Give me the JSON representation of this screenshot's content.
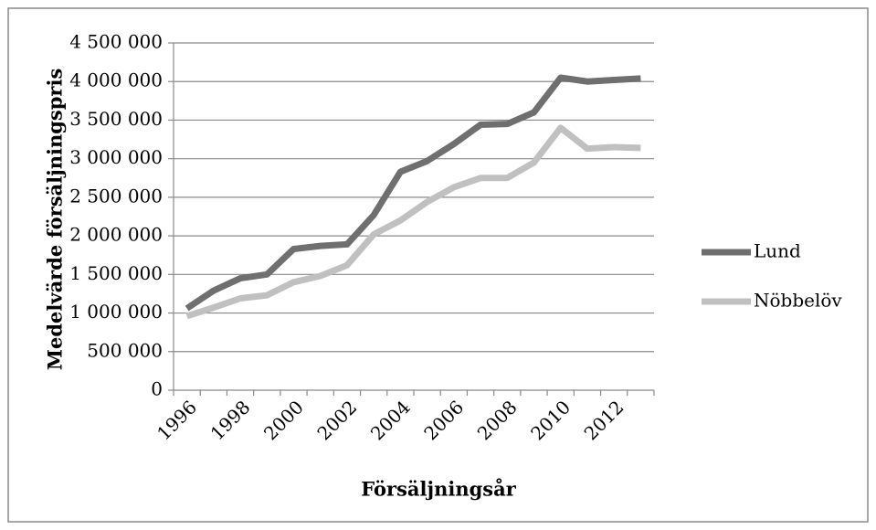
{
  "chart_data": {
    "type": "line",
    "x_label": "Försäljningsår",
    "y_label": "Medelvärde försäljningspris",
    "categories": [
      "1996",
      null,
      "1998",
      null,
      "2000",
      null,
      "2002",
      null,
      "2004",
      null,
      "2006",
      null,
      "2008",
      null,
      "2010",
      null,
      "2012",
      null
    ],
    "series": [
      {
        "name": "Lund",
        "color": "#6f6f6f",
        "values": [
          1060000,
          1290000,
          1450000,
          1500000,
          1830000,
          1870000,
          1890000,
          2270000,
          2830000,
          2970000,
          3190000,
          3440000,
          3450000,
          3600000,
          4050000,
          4000000,
          4020000,
          4040000
        ]
      },
      {
        "name": "Nöbbelöv",
        "color": "#c0c0c0",
        "values": [
          960000,
          1070000,
          1190000,
          1230000,
          1400000,
          1480000,
          1620000,
          2020000,
          2200000,
          2440000,
          2630000,
          2750000,
          2750000,
          2950000,
          3400000,
          3130000,
          3150000,
          3140000
        ]
      }
    ],
    "ylim": [
      0,
      4500000
    ],
    "yticks": [
      0,
      {
        "value": 500000,
        "label": "500 000"
      },
      {
        "value": 1000000,
        "label": "1 000 000"
      },
      {
        "value": 1500000,
        "label": "1 500 000"
      },
      {
        "value": 2000000,
        "label": "2 000 000"
      },
      {
        "value": 2500000,
        "label": "2 500 000"
      },
      {
        "value": 3000000,
        "label": "3 000 000"
      },
      {
        "value": 3500000,
        "label": "3 500 000"
      },
      {
        "value": 4000000,
        "label": "4 000 000"
      },
      {
        "value": 4500000,
        "label": "4 500 000"
      }
    ],
    "grid": true,
    "legend": "right"
  }
}
